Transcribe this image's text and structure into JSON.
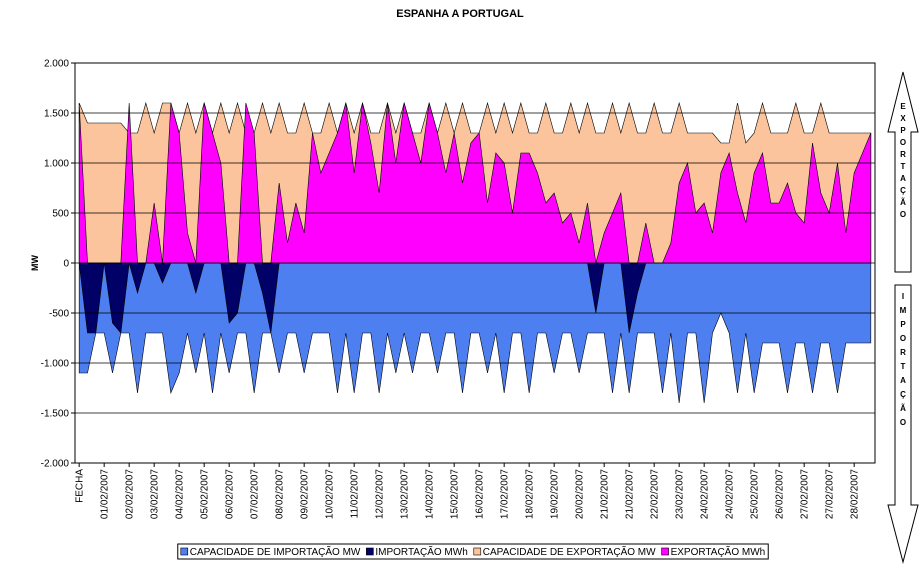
{
  "chart_data": {
    "type": "area",
    "title": "ESPANHA A PORTUGAL",
    "y_label": "MW",
    "annotations": [
      "EXPORTAÇÃO",
      "IMPORTAÇÃO"
    ],
    "categories": [
      "FECHA",
      null,
      null,
      "01/02/2007",
      null,
      null,
      "02/02/2007",
      null,
      null,
      "03/02/2007",
      null,
      null,
      "04/02/2007",
      null,
      null,
      "05/02/2007",
      null,
      null,
      "06/02/2007",
      null,
      null,
      "07/02/2007",
      null,
      null,
      "08/02/2007",
      null,
      null,
      "09/02/2007",
      null,
      null,
      "10/02/2007",
      null,
      null,
      "11/02/2007",
      null,
      null,
      "12/02/2007",
      null,
      null,
      "13/02/2007",
      null,
      null,
      "14/02/2007",
      null,
      null,
      "15/02/2007",
      null,
      null,
      "16/02/2007",
      null,
      null,
      "17/02/2007",
      null,
      null,
      "18/02/2007",
      null,
      null,
      "19/02/2007",
      null,
      null,
      "20/02/2007",
      null,
      null,
      "21/02/2007",
      null,
      null,
      "21/02/2007",
      null,
      null,
      "22/02/2007",
      null,
      null,
      "23/02/2007",
      null,
      null,
      "24/02/2007",
      null,
      null,
      "24/02/2007",
      null,
      null,
      "25/02/2007",
      null,
      null,
      "26/02/2007",
      null,
      null,
      "27/02/2007",
      null,
      null,
      "27/02/2007",
      null,
      null,
      "28/02/2007",
      null,
      null
    ],
    "series": [
      {
        "name": "CAPACIDADE DE IMPORTAÇÃO MW",
        "color": "#4d7ff0",
        "values": [
          -1100,
          -1100,
          -700,
          -700,
          -1100,
          -700,
          -700,
          -1300,
          -700,
          -700,
          -700,
          -1300,
          -1100,
          -700,
          -1100,
          -700,
          -1300,
          -700,
          -1100,
          -700,
          -700,
          -1300,
          -700,
          -700,
          -1100,
          -700,
          -700,
          -1100,
          -700,
          -700,
          -700,
          -1300,
          -700,
          -1300,
          -700,
          -700,
          -1300,
          -700,
          -1100,
          -700,
          -1100,
          -700,
          -700,
          -1100,
          -700,
          -700,
          -1300,
          -700,
          -700,
          -1100,
          -700,
          -1300,
          -700,
          -700,
          -1300,
          -700,
          -700,
          -1100,
          -700,
          -700,
          -1100,
          -700,
          -700,
          -700,
          -1300,
          -700,
          -1300,
          -700,
          -700,
          -700,
          -1300,
          -700,
          -1400,
          -700,
          -700,
          -1400,
          -700,
          -500,
          -700,
          -1300,
          -700,
          -1300,
          -800,
          -800,
          -800,
          -1300,
          -800,
          -800,
          -1300,
          -800,
          -800,
          -1300,
          -800,
          -800,
          -800,
          -800
        ]
      },
      {
        "name": "IMPORTAÇÃO MWh",
        "color": "#000066",
        "values": [
          0,
          -700,
          -700,
          0,
          -600,
          -700,
          0,
          -300,
          0,
          0,
          -200,
          0,
          0,
          0,
          -300,
          0,
          0,
          0,
          -600,
          -500,
          0,
          0,
          -300,
          -700,
          0,
          0,
          0,
          0,
          0,
          0,
          0,
          0,
          0,
          0,
          0,
          0,
          0,
          0,
          0,
          0,
          0,
          0,
          0,
          0,
          0,
          0,
          0,
          0,
          0,
          0,
          0,
          0,
          0,
          0,
          0,
          0,
          0,
          0,
          0,
          0,
          0,
          0,
          -500,
          0,
          0,
          0,
          -700,
          -300,
          0,
          0,
          0,
          0,
          0,
          0,
          0,
          0,
          0,
          0,
          0,
          0,
          0,
          0,
          0,
          0,
          0,
          0,
          0,
          0,
          0,
          0,
          0,
          0,
          0,
          0,
          0,
          0
        ]
      },
      {
        "name": "CAPACIDADE DE EXPORTAÇÃO MW",
        "color": "#fcc49c",
        "values": [
          1600,
          1400,
          1400,
          1400,
          1400,
          1400,
          1300,
          1300,
          1600,
          1300,
          1600,
          1600,
          1300,
          1600,
          1300,
          1600,
          1300,
          1600,
          1300,
          1600,
          1300,
          1300,
          1600,
          1300,
          1600,
          1300,
          1300,
          1600,
          1300,
          1300,
          1600,
          1300,
          1600,
          1300,
          1600,
          1300,
          1300,
          1600,
          1300,
          1600,
          1300,
          1300,
          1600,
          1300,
          1600,
          1300,
          1600,
          1300,
          1300,
          1600,
          1300,
          1600,
          1300,
          1600,
          1300,
          1300,
          1600,
          1300,
          1300,
          1600,
          1300,
          1600,
          1300,
          1300,
          1600,
          1300,
          1600,
          1300,
          1300,
          1600,
          1300,
          1300,
          1600,
          1300,
          1300,
          1300,
          1300,
          1200,
          1200,
          1600,
          1200,
          1300,
          1600,
          1300,
          1300,
          1300,
          1600,
          1300,
          1300,
          1600,
          1300,
          1300,
          1300,
          1300,
          1300,
          1300
        ]
      },
      {
        "name": "EXPORTAÇÃO MWh",
        "color": "#ff00ff",
        "values": [
          1600,
          0,
          0,
          0,
          0,
          0,
          1600,
          0,
          0,
          600,
          0,
          1600,
          1300,
          300,
          0,
          1600,
          1300,
          1000,
          0,
          0,
          1600,
          1300,
          0,
          0,
          800,
          200,
          600,
          300,
          1300,
          900,
          1100,
          1300,
          1600,
          900,
          1600,
          1200,
          700,
          1600,
          1000,
          1600,
          1300,
          1000,
          1600,
          1300,
          900,
          1300,
          800,
          1200,
          1300,
          600,
          1100,
          1000,
          500,
          1100,
          1100,
          900,
          600,
          700,
          400,
          500,
          200,
          600,
          0,
          300,
          500,
          700,
          0,
          0,
          400,
          0,
          0,
          200,
          800,
          1000,
          500,
          600,
          300,
          900,
          1100,
          700,
          400,
          900,
          1100,
          600,
          600,
          800,
          500,
          400,
          1200,
          700,
          500,
          1000,
          300,
          900,
          1100,
          1300
        ]
      }
    ],
    "ylim": [
      -2000,
      2000
    ],
    "yticks": [
      {
        "value": 2000,
        "label": "2.000"
      },
      {
        "value": 1500,
        "label": "1.500"
      },
      {
        "value": 1000,
        "label": "1.000"
      },
      500,
      0,
      -500,
      {
        "value": -1000,
        "label": "-1.000"
      },
      {
        "value": -1500,
        "label": "-1.500"
      },
      {
        "value": -2000,
        "label": "-2.000"
      }
    ],
    "grid": true,
    "legend": "bottom"
  }
}
